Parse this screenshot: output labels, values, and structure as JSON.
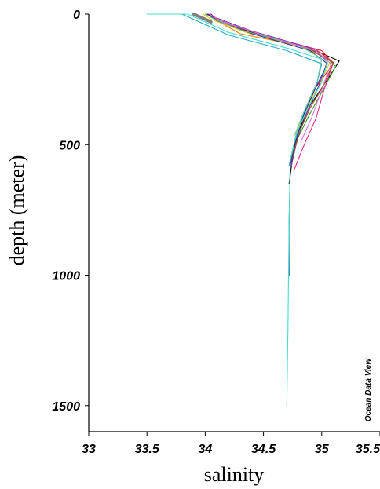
{
  "chart_data": {
    "type": "line",
    "title": "",
    "xlabel": "salinity",
    "ylabel": "depth (meter)",
    "watermark": "Ocean Data View",
    "xlim": [
      33,
      35.5
    ],
    "ylim": [
      0,
      1600
    ],
    "y_inverted": true,
    "x_ticks": [
      {
        "value": 33,
        "label": "33"
      },
      {
        "value": 33.5,
        "label": "33.5"
      },
      {
        "value": 34,
        "label": "34"
      },
      {
        "value": 34.5,
        "label": "34.5"
      },
      {
        "value": 35,
        "label": "35"
      },
      {
        "value": 35.5,
        "label": "35.5"
      }
    ],
    "y_ticks": [
      {
        "value": 0,
        "label": "0"
      },
      {
        "value": 500,
        "label": "500"
      },
      {
        "value": 1000,
        "label": "1000"
      },
      {
        "value": 1500,
        "label": "1500"
      }
    ],
    "grid": false,
    "legend": "none",
    "series": [
      {
        "color": "#000000",
        "x": [
          34.05,
          34.1,
          34.4,
          34.9,
          35.15,
          35.05,
          34.9,
          34.8,
          34.75,
          34.72
        ],
        "y": [
          0,
          20,
          70,
          130,
          180,
          250,
          350,
          450,
          550,
          650
        ]
      },
      {
        "color": "#e41a1c",
        "x": [
          34.0,
          34.15,
          34.5,
          35.0,
          35.1,
          34.95,
          34.85,
          34.77,
          34.73
        ],
        "y": [
          0,
          30,
          80,
          140,
          190,
          280,
          380,
          480,
          580
        ]
      },
      {
        "color": "#ff7f00",
        "x": [
          34.02,
          34.1,
          34.3,
          34.8,
          35.05,
          35.0,
          34.88,
          34.78,
          34.74
        ],
        "y": [
          0,
          25,
          75,
          120,
          170,
          260,
          360,
          460,
          560
        ]
      },
      {
        "color": "#ffcc00",
        "x": [
          33.98,
          34.05,
          34.35,
          34.85,
          35.08,
          34.98,
          34.86,
          34.76
        ],
        "y": [
          0,
          20,
          70,
          125,
          175,
          270,
          370,
          470
        ]
      },
      {
        "color": "#33a02c",
        "x": [
          34.0,
          34.2,
          34.6,
          35.0,
          35.12,
          35.0,
          34.9,
          34.8,
          34.74
        ],
        "y": [
          0,
          40,
          90,
          150,
          200,
          300,
          380,
          470,
          560
        ]
      },
      {
        "color": "#e7298a",
        "x": [
          34.03,
          34.12,
          34.45,
          34.95,
          35.1,
          35.02,
          34.95,
          34.85,
          34.76
        ],
        "y": [
          0,
          25,
          75,
          135,
          185,
          290,
          400,
          500,
          600
        ]
      },
      {
        "color": "#7b2fb5",
        "x": [
          34.0,
          34.1,
          34.4,
          34.9,
          35.05,
          34.97,
          34.87,
          34.79,
          34.74
        ],
        "y": [
          0,
          15,
          65,
          130,
          180,
          280,
          380,
          480,
          580
        ]
      },
      {
        "color": "#a65628",
        "x": [
          34.01,
          34.08,
          34.38,
          34.88,
          35.1,
          35.02,
          34.9,
          34.8,
          34.75
        ],
        "y": [
          0,
          20,
          70,
          130,
          185,
          270,
          360,
          460,
          550
        ]
      },
      {
        "color": "#2ca8c8",
        "x": [
          33.8,
          33.95,
          34.2,
          34.7,
          35.0,
          34.95,
          34.85,
          34.77,
          34.72
        ],
        "y": [
          0,
          30,
          80,
          140,
          190,
          280,
          380,
          480,
          580
        ]
      },
      {
        "color": "#1f3a93",
        "x": [
          34.02,
          34.1,
          34.4,
          34.9,
          35.05,
          34.95,
          34.85,
          34.78,
          34.73,
          34.72,
          34.72
        ],
        "y": [
          0,
          25,
          75,
          140,
          190,
          280,
          380,
          480,
          580,
          800,
          1000
        ]
      },
      {
        "color": "#40e0d0",
        "x": [
          33.5,
          33.85,
          33.95,
          34.2,
          34.7,
          35.05,
          35.0,
          34.88,
          34.78,
          34.73,
          34.72,
          34.71,
          34.7
        ],
        "y": [
          0,
          0,
          20,
          70,
          130,
          180,
          260,
          360,
          460,
          560,
          800,
          1200,
          1500
        ]
      },
      {
        "color": "#66c2a5",
        "x": [
          34.0,
          34.08,
          34.3,
          34.8,
          35.0,
          34.96,
          34.86,
          34.77
        ],
        "y": [
          0,
          20,
          60,
          120,
          170,
          260,
          360,
          460
        ]
      },
      {
        "color": "#da70d6",
        "x": [
          34.04,
          34.15,
          34.5,
          34.95,
          35.08,
          35.0,
          34.92,
          34.82
        ],
        "y": [
          0,
          30,
          80,
          140,
          190,
          290,
          390,
          490
        ]
      },
      {
        "color": "#808080",
        "x": [
          33.9,
          33.95,
          34.0,
          34.05
        ],
        "y": [
          0,
          10,
          20,
          30
        ]
      }
    ]
  }
}
